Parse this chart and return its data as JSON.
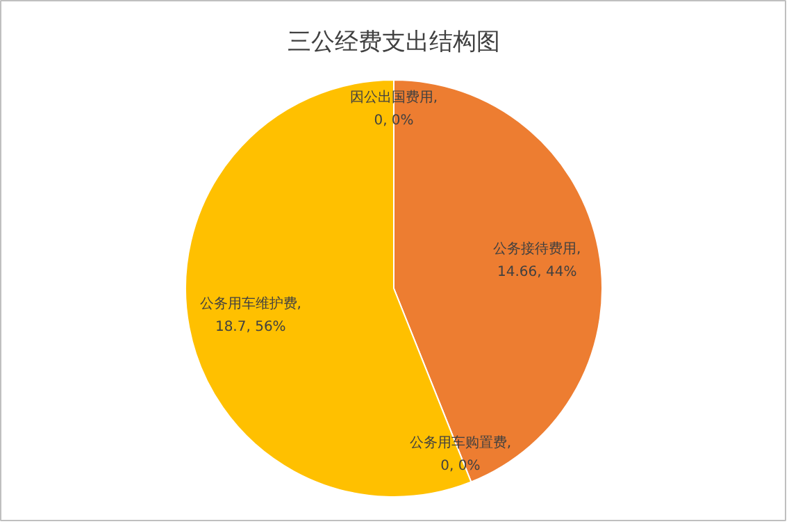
{
  "chart_data": {
    "type": "pie",
    "title": "三公经费支出结构图",
    "categories": [
      "因公出国费用",
      "公务接待费用",
      "公务用车购置费",
      "公务用车维护费"
    ],
    "values": [
      0,
      14.66,
      0,
      18.7
    ],
    "colors": [
      "#4472c4",
      "#ed7d31",
      "#a5a5a5",
      "#ffc000"
    ],
    "value_labels": [
      ", 0, 0%",
      ", 14.66, 44%",
      ", 0, 0%",
      ", 18.7, 56%"
    ],
    "legend": false
  }
}
